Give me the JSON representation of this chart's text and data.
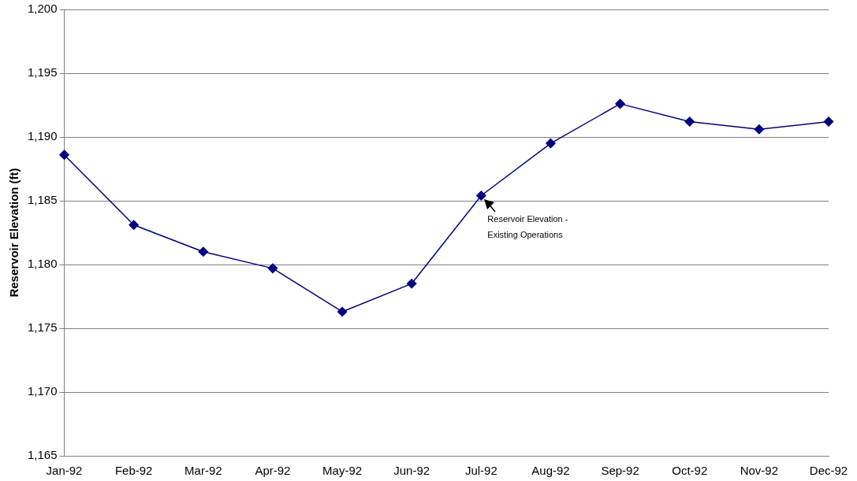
{
  "chart_data": {
    "type": "line",
    "ylabel": "Reservoir Elevation (ft)",
    "categories": [
      "Jan-92",
      "Feb-92",
      "Mar-92",
      "Apr-92",
      "May-92",
      "Jun-92",
      "Jul-92",
      "Aug-92",
      "Sep-92",
      "Oct-92",
      "Nov-92",
      "Dec-92"
    ],
    "series": [
      {
        "color": "#000080",
        "values": [
          1188.6,
          1183.1,
          1181.0,
          1179.7,
          1176.3,
          1178.5,
          1185.4,
          1189.5,
          1192.6,
          1191.2,
          1190.6,
          1191.2
        ]
      }
    ],
    "ylim": [
      1165,
      1200
    ],
    "yticks": [
      {
        "value": 1165,
        "label": "1,165"
      },
      {
        "value": 1170,
        "label": "1,170"
      },
      {
        "value": 1175,
        "label": "1,175"
      },
      {
        "value": 1180,
        "label": "1,180"
      },
      {
        "value": 1185,
        "label": "1,185"
      },
      {
        "value": 1190,
        "label": "1,190"
      },
      {
        "value": 1195,
        "label": "1,195"
      },
      {
        "value": 1200,
        "label": "1,200"
      }
    ],
    "grid": "y",
    "legend": false,
    "marker": "diamond",
    "line_style": "solid",
    "annotations": [
      {
        "text": "Reservoir Elevation - Existing Operations",
        "x": "Jul-92",
        "y": 1185.4
      }
    ]
  }
}
